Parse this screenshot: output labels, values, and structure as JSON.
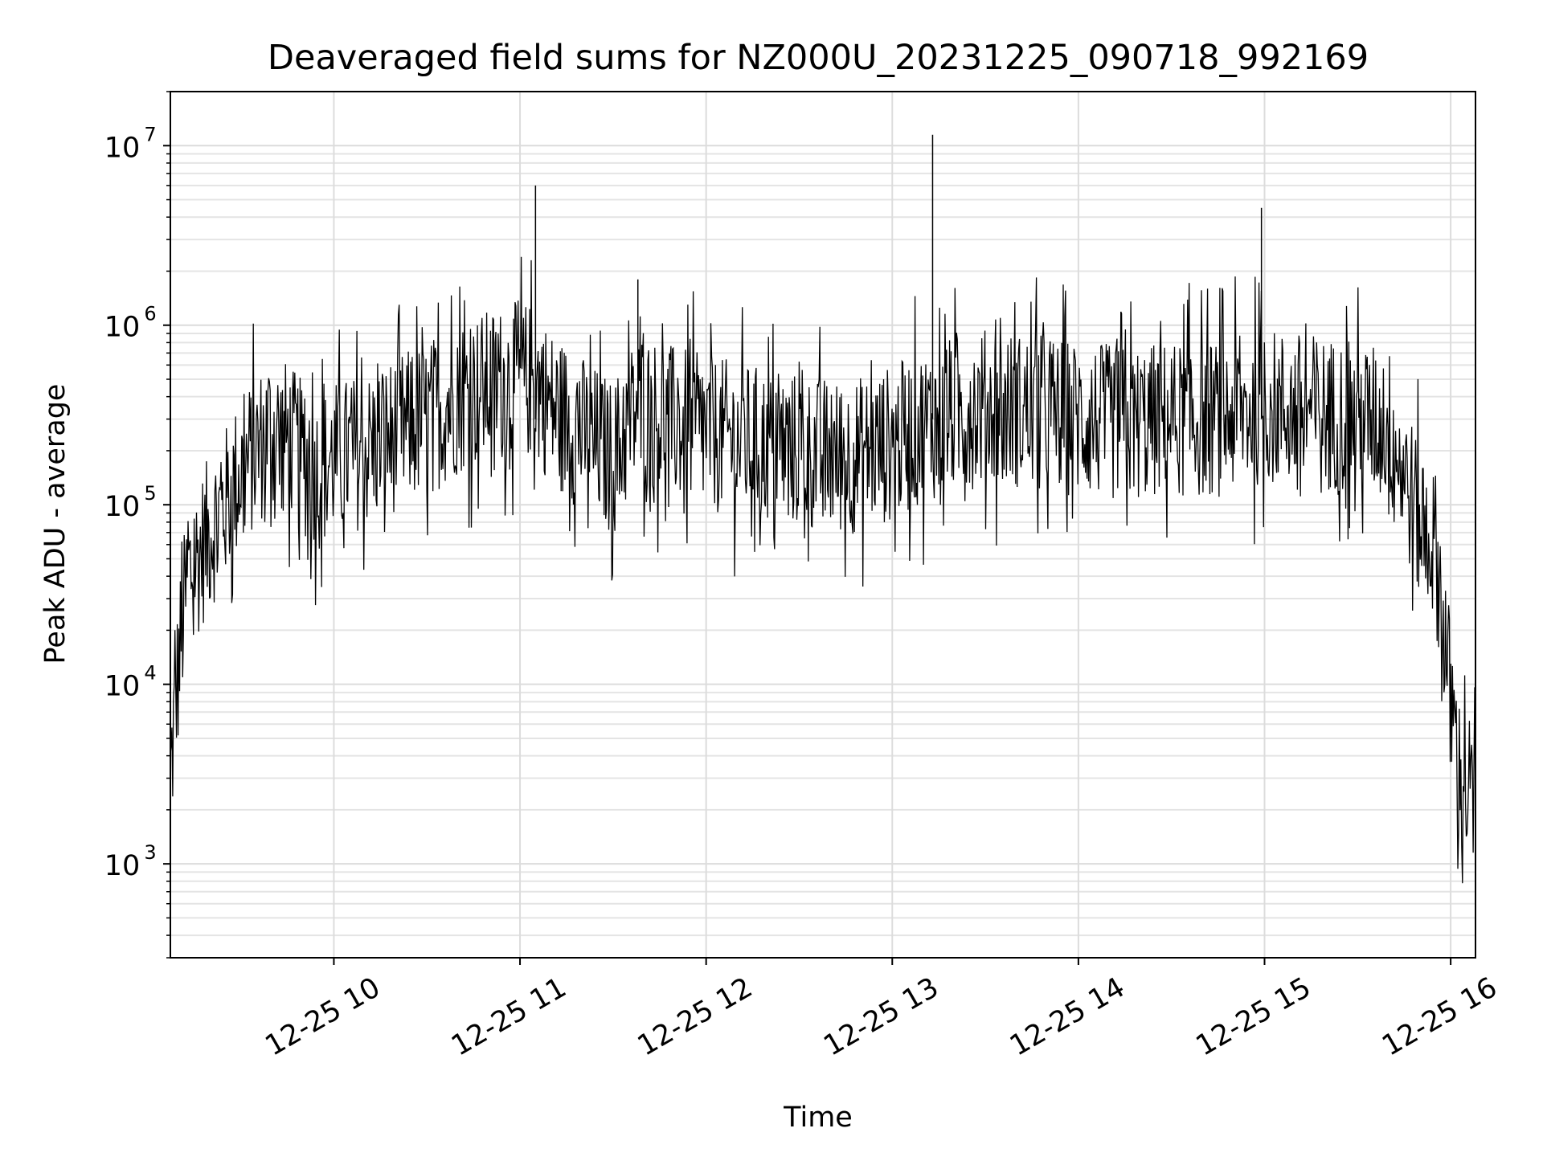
{
  "chart_data": {
    "type": "line",
    "title": "Deaveraged field sums for NZ000U_20231225_090718_992169",
    "xlabel": "Time",
    "ylabel": "Peak ADU - average",
    "yscale": "log",
    "ylim": [
      300,
      20000000
    ],
    "xlim": [
      "2023-12-25T09:07:18",
      "2023-12-25T16:08:00"
    ],
    "grid": true,
    "line_color": "#000000",
    "x_ticks": [
      {
        "value": "2023-12-25T10:00",
        "label": "12-25 10"
      },
      {
        "value": "2023-12-25T11:00",
        "label": "12-25 11"
      },
      {
        "value": "2023-12-25T12:00",
        "label": "12-25 12"
      },
      {
        "value": "2023-12-25T13:00",
        "label": "12-25 13"
      },
      {
        "value": "2023-12-25T14:00",
        "label": "12-25 14"
      },
      {
        "value": "2023-12-25T15:00",
        "label": "12-25 15"
      },
      {
        "value": "2023-12-25T16:00",
        "label": "12-25 16"
      }
    ],
    "y_ticks": [
      {
        "value": 1000,
        "base": "10",
        "exp": "3"
      },
      {
        "value": 10000,
        "base": "10",
        "exp": "4"
      },
      {
        "value": 100000,
        "base": "10",
        "exp": "5"
      },
      {
        "value": 1000000,
        "base": "10",
        "exp": "6"
      },
      {
        "value": 10000000,
        "base": "10",
        "exp": "7"
      }
    ],
    "series": [
      {
        "x": [
          "2023-12-25T09:07:18",
          "2023-12-25T09:09",
          "2023-12-25T09:11",
          "2023-12-25T09:13",
          "2023-12-25T09:16",
          "2023-12-25T09:20",
          "2023-12-25T09:25",
          "2023-12-25T09:30",
          "2023-12-25T09:35",
          "2023-12-25T09:40",
          "2023-12-25T09:45",
          "2023-12-25T09:50",
          "2023-12-25T09:55",
          "2023-12-25T10:00",
          "2023-12-25T10:10",
          "2023-12-25T10:20",
          "2023-12-25T10:30",
          "2023-12-25T10:40",
          "2023-12-25T10:50",
          "2023-12-25T11:00",
          "2023-12-25T11:05",
          "2023-12-25T11:10",
          "2023-12-25T11:20",
          "2023-12-25T11:30",
          "2023-12-25T11:38",
          "2023-12-25T11:45",
          "2023-12-25T12:00",
          "2023-12-25T12:15",
          "2023-12-25T12:30",
          "2023-12-25T12:45",
          "2023-12-25T13:00",
          "2023-12-25T13:15",
          "2023-12-25T13:30",
          "2023-12-25T13:45",
          "2023-12-25T14:00",
          "2023-12-25T14:15",
          "2023-12-25T14:30",
          "2023-12-25T14:45",
          "2023-12-25T15:00",
          "2023-12-25T15:15",
          "2023-12-25T15:30",
          "2023-12-25T15:40",
          "2023-12-25T15:45",
          "2023-12-25T15:50",
          "2023-12-25T15:55",
          "2023-12-25T15:58",
          "2023-12-25T16:00",
          "2023-12-25T16:03",
          "2023-12-25T16:06",
          "2023-12-25T16:08"
        ],
        "y": [
          3000,
          8000,
          20000,
          40000,
          50000,
          70000,
          100000,
          150000,
          200000,
          260000,
          230000,
          180000,
          150000,
          180000,
          200000,
          250000,
          300000,
          400000,
          450000,
          500000,
          480000,
          350000,
          250000,
          180000,
          350000,
          300000,
          250000,
          220000,
          200000,
          180000,
          220000,
          300000,
          350000,
          330000,
          300000,
          280000,
          300000,
          300000,
          350000,
          330000,
          300000,
          280000,
          150000,
          80000,
          60000,
          20000,
          8000,
          3000,
          2500,
          2000
        ]
      }
    ],
    "spikes": [
      {
        "x": "2023-12-25T11:05",
        "y": 6000000
      },
      {
        "x": "2023-12-25T11:38",
        "y": 1800000
      },
      {
        "x": "2023-12-25T13:13",
        "y": 11500000
      },
      {
        "x": "2023-12-25T14:59",
        "y": 4500000
      }
    ],
    "series_range": [
      {
        "x": "2023-12-25T09:30",
        "y_low": 25000,
        "y_high": 450000
      },
      {
        "x": "2023-12-25T10:30",
        "y_low": 50000,
        "y_high": 1300000
      },
      {
        "x": "2023-12-25T11:30",
        "y_low": 35000,
        "y_high": 1000000
      },
      {
        "x": "2023-12-25T12:30",
        "y_low": 33000,
        "y_high": 800000
      },
      {
        "x": "2023-12-25T13:30",
        "y_low": 45000,
        "y_high": 1600000
      },
      {
        "x": "2023-12-25T14:30",
        "y_low": 40000,
        "y_high": 1300000
      },
      {
        "x": "2023-12-25T15:30",
        "y_low": 38000,
        "y_high": 1000000
      },
      {
        "x": "2023-12-25T16:05",
        "y_low": 750,
        "y_high": 4000
      }
    ]
  }
}
